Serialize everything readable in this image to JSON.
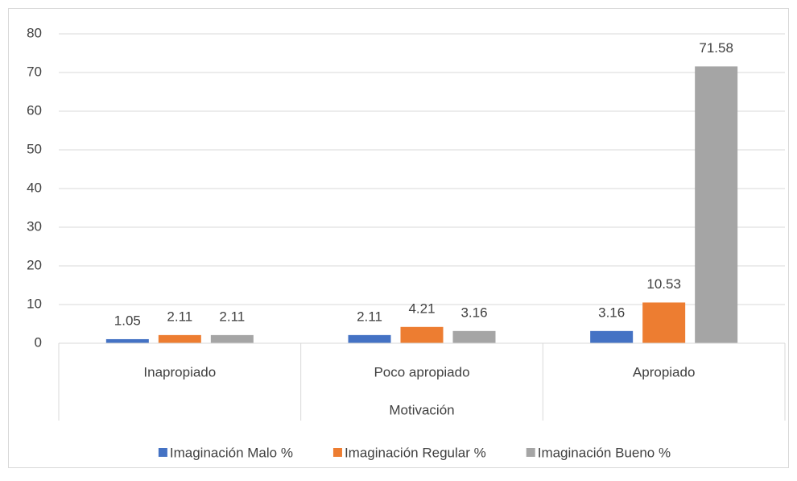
{
  "chart_data": {
    "type": "bar",
    "x_label": "Motivación",
    "categories": [
      "Inapropiado",
      "Poco apropiado",
      "Apropiado"
    ],
    "series": [
      {
        "name": "Imaginación Malo %",
        "color": "#4472c4",
        "values": [
          1.05,
          2.11,
          3.16
        ]
      },
      {
        "name": "Imaginación Regular %",
        "color": "#ed7d31",
        "values": [
          2.11,
          4.21,
          10.53
        ]
      },
      {
        "name": "Imaginación Bueno %",
        "color": "#a5a5a5",
        "values": [
          2.11,
          3.16,
          71.58
        ]
      }
    ],
    "ylim": [
      0,
      80
    ],
    "yticks": [
      0,
      10,
      20,
      30,
      40,
      50,
      60,
      70,
      80
    ],
    "grid": true,
    "legend": "bottom"
  }
}
